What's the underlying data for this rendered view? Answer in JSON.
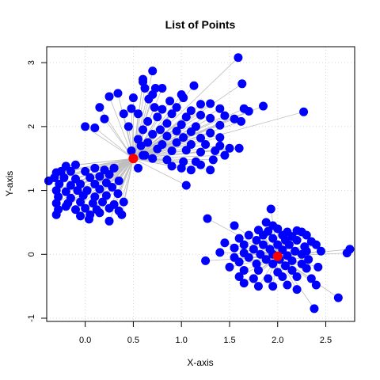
{
  "chart_data": {
    "type": "scatter",
    "title": "List of Points",
    "xlabel": "X-axis",
    "ylabel": "Y-axis",
    "xlim": [
      -0.4,
      2.8
    ],
    "ylim": [
      -1.05,
      3.25
    ],
    "xticks": [
      0.0,
      0.5,
      1.0,
      1.5,
      2.0,
      2.5
    ],
    "xtick_labels": [
      "0.0",
      "0.5",
      "1.0",
      "1.5",
      "2.0",
      "2.5"
    ],
    "yticks": [
      -1,
      0,
      1,
      2,
      3
    ],
    "ytick_labels": [
      "-1",
      "0",
      "1",
      "2",
      "3"
    ],
    "grid": true,
    "colors": {
      "points": "#0000ff",
      "centers": "#ff0000",
      "lines": "#bebebe",
      "grid": "#d3d3d3"
    },
    "centers": [
      {
        "x": 0.5,
        "y": 1.5
      },
      {
        "x": 2.0,
        "y": -0.03
      }
    ],
    "clusters": [
      {
        "center_index": 0,
        "points": [
          [
            1.59,
            3.08
          ],
          [
            0.7,
            2.87
          ],
          [
            0.6,
            2.74
          ],
          [
            0.6,
            2.7
          ],
          [
            0.62,
            2.6
          ],
          [
            0.73,
            2.6
          ],
          [
            0.8,
            2.6
          ],
          [
            1.13,
            2.64
          ],
          [
            1.63,
            2.67
          ],
          [
            0.34,
            2.52
          ],
          [
            0.25,
            2.47
          ],
          [
            0.7,
            2.5
          ],
          [
            1.0,
            2.5
          ],
          [
            1.02,
            2.45
          ],
          [
            0.5,
            2.45
          ],
          [
            0.66,
            2.43
          ],
          [
            0.88,
            2.4
          ],
          [
            1.2,
            2.35
          ],
          [
            1.3,
            2.36
          ],
          [
            1.4,
            2.28
          ],
          [
            1.85,
            2.32
          ],
          [
            0.15,
            2.3
          ],
          [
            0.48,
            2.28
          ],
          [
            0.72,
            2.3
          ],
          [
            0.8,
            2.27
          ],
          [
            0.95,
            2.3
          ],
          [
            1.1,
            2.25
          ],
          [
            1.65,
            2.28
          ],
          [
            1.7,
            2.24
          ],
          [
            2.27,
            2.23
          ],
          [
            0.4,
            2.2
          ],
          [
            0.55,
            2.2
          ],
          [
            0.9,
            2.2
          ],
          [
            1.2,
            2.18
          ],
          [
            1.45,
            2.17
          ],
          [
            0.2,
            2.12
          ],
          [
            0.75,
            2.15
          ],
          [
            1.05,
            2.15
          ],
          [
            1.3,
            2.13
          ],
          [
            1.55,
            2.12
          ],
          [
            1.62,
            2.08
          ],
          [
            0.65,
            2.08
          ],
          [
            0.85,
            2.05
          ],
          [
            1.0,
            2.03
          ],
          [
            1.15,
            2.0
          ],
          [
            1.4,
            2.02
          ],
          [
            0.0,
            2.0
          ],
          [
            0.1,
            1.98
          ],
          [
            0.45,
            2.0
          ],
          [
            0.6,
            1.95
          ],
          [
            0.78,
            1.95
          ],
          [
            0.95,
            1.93
          ],
          [
            1.1,
            1.92
          ],
          [
            1.3,
            1.9
          ],
          [
            0.7,
            1.88
          ],
          [
            0.85,
            1.85
          ],
          [
            1.02,
            1.83
          ],
          [
            1.2,
            1.82
          ],
          [
            1.4,
            1.83
          ],
          [
            0.55,
            1.8
          ],
          [
            0.65,
            1.75
          ],
          [
            0.8,
            1.72
          ],
          [
            0.95,
            1.75
          ],
          [
            1.1,
            1.72
          ],
          [
            1.25,
            1.72
          ],
          [
            1.4,
            1.7
          ],
          [
            1.5,
            1.66
          ],
          [
            1.6,
            1.66
          ],
          [
            0.75,
            1.65
          ],
          [
            0.9,
            1.62
          ],
          [
            1.05,
            1.63
          ],
          [
            1.2,
            1.6
          ],
          [
            1.35,
            1.62
          ],
          [
            1.45,
            1.55
          ],
          [
            0.6,
            1.55
          ],
          [
            0.7,
            1.5
          ],
          [
            0.85,
            1.48
          ],
          [
            1.02,
            1.45
          ],
          [
            1.15,
            1.45
          ],
          [
            1.33,
            1.48
          ],
          [
            0.9,
            1.38
          ],
          [
            1.0,
            1.35
          ],
          [
            1.1,
            1.32
          ],
          [
            1.3,
            1.32
          ],
          [
            0.55,
            1.35
          ],
          [
            1.05,
            1.08
          ],
          [
            0.62,
            1.55
          ],
          [
            0.48,
            1.62
          ],
          [
            0.58,
            1.7
          ],
          [
            1.2,
            1.4
          ],
          [
            -0.1,
            1.4
          ],
          [
            -0.2,
            1.38
          ],
          [
            -0.25,
            1.3
          ],
          [
            -0.3,
            1.28
          ],
          [
            -0.15,
            1.3
          ],
          [
            0.0,
            1.3
          ],
          [
            0.1,
            1.35
          ],
          [
            0.2,
            1.32
          ],
          [
            0.3,
            1.35
          ],
          [
            -0.32,
            1.2
          ],
          [
            -0.22,
            1.2
          ],
          [
            -0.1,
            1.18
          ],
          [
            0.05,
            1.2
          ],
          [
            0.15,
            1.22
          ],
          [
            0.25,
            1.25
          ],
          [
            -0.38,
            1.15
          ],
          [
            -0.27,
            1.1
          ],
          [
            -0.15,
            1.08
          ],
          [
            -0.05,
            1.1
          ],
          [
            0.1,
            1.1
          ],
          [
            0.22,
            1.12
          ],
          [
            0.35,
            1.15
          ],
          [
            -0.3,
            1.0
          ],
          [
            -0.2,
            0.98
          ],
          [
            -0.08,
            1.0
          ],
          [
            0.02,
            1.0
          ],
          [
            0.15,
            1.02
          ],
          [
            0.28,
            1.05
          ],
          [
            -0.28,
            0.9
          ],
          [
            -0.15,
            0.88
          ],
          [
            -0.02,
            0.92
          ],
          [
            0.1,
            0.9
          ],
          [
            0.22,
            0.92
          ],
          [
            0.34,
            0.95
          ],
          [
            -0.3,
            0.8
          ],
          [
            -0.18,
            0.8
          ],
          [
            -0.05,
            0.82
          ],
          [
            0.08,
            0.8
          ],
          [
            0.18,
            0.82
          ],
          [
            0.3,
            0.78
          ],
          [
            0.4,
            0.82
          ],
          [
            -0.28,
            0.7
          ],
          [
            -0.1,
            0.7
          ],
          [
            0.0,
            0.72
          ],
          [
            0.12,
            0.7
          ],
          [
            0.25,
            0.72
          ],
          [
            0.35,
            0.68
          ],
          [
            -0.3,
            0.62
          ],
          [
            -0.05,
            0.6
          ],
          [
            0.05,
            0.62
          ],
          [
            0.15,
            0.65
          ],
          [
            0.38,
            0.62
          ],
          [
            0.04,
            0.55
          ],
          [
            0.25,
            0.52
          ],
          [
            -0.2,
            0.75
          ]
        ]
      },
      {
        "center_index": 1,
        "points": [
          [
            1.93,
            0.71
          ],
          [
            1.27,
            0.56
          ],
          [
            1.55,
            0.45
          ],
          [
            1.88,
            0.5
          ],
          [
            1.95,
            0.45
          ],
          [
            2.0,
            0.4
          ],
          [
            1.8,
            0.38
          ],
          [
            1.9,
            0.36
          ],
          [
            2.1,
            0.35
          ],
          [
            2.2,
            0.37
          ],
          [
            2.25,
            0.35
          ],
          [
            1.7,
            0.3
          ],
          [
            1.85,
            0.3
          ],
          [
            2.05,
            0.3
          ],
          [
            2.15,
            0.28
          ],
          [
            2.3,
            0.3
          ],
          [
            1.6,
            0.25
          ],
          [
            1.78,
            0.22
          ],
          [
            1.95,
            0.25
          ],
          [
            2.08,
            0.22
          ],
          [
            2.2,
            0.22
          ],
          [
            2.35,
            0.2
          ],
          [
            1.45,
            0.18
          ],
          [
            1.65,
            0.15
          ],
          [
            1.85,
            0.15
          ],
          [
            2.0,
            0.15
          ],
          [
            2.12,
            0.15
          ],
          [
            2.28,
            0.12
          ],
          [
            2.4,
            0.15
          ],
          [
            1.55,
            0.1
          ],
          [
            1.75,
            0.08
          ],
          [
            1.92,
            0.08
          ],
          [
            2.05,
            0.07
          ],
          [
            2.18,
            0.05
          ],
          [
            2.3,
            0.05
          ],
          [
            1.4,
            0.03
          ],
          [
            1.65,
            0.02
          ],
          [
            1.82,
            0.0
          ],
          [
            1.95,
            0.0
          ],
          [
            2.1,
            -0.02
          ],
          [
            2.25,
            0.0
          ],
          [
            2.45,
            0.05
          ],
          [
            2.75,
            0.08
          ],
          [
            2.72,
            0.02
          ],
          [
            1.55,
            -0.05
          ],
          [
            1.7,
            -0.05
          ],
          [
            1.88,
            -0.08
          ],
          [
            2.02,
            -0.08
          ],
          [
            2.15,
            -0.1
          ],
          [
            2.32,
            -0.08
          ],
          [
            1.25,
            -0.1
          ],
          [
            1.6,
            -0.12
          ],
          [
            1.78,
            -0.15
          ],
          [
            1.95,
            -0.15
          ],
          [
            2.08,
            -0.18
          ],
          [
            2.25,
            -0.15
          ],
          [
            1.65,
            -0.25
          ],
          [
            1.8,
            -0.25
          ],
          [
            2.0,
            -0.28
          ],
          [
            2.15,
            -0.25
          ],
          [
            2.3,
            -0.22
          ],
          [
            2.42,
            -0.2
          ],
          [
            1.6,
            -0.35
          ],
          [
            1.75,
            -0.38
          ],
          [
            1.9,
            -0.38
          ],
          [
            2.05,
            -0.35
          ],
          [
            2.2,
            -0.35
          ],
          [
            2.35,
            -0.38
          ],
          [
            1.8,
            -0.5
          ],
          [
            1.95,
            -0.5
          ],
          [
            2.1,
            -0.48
          ],
          [
            2.2,
            -0.55
          ],
          [
            2.4,
            -0.48
          ],
          [
            2.63,
            -0.68
          ],
          [
            2.38,
            -0.85
          ],
          [
            1.65,
            -0.45
          ],
          [
            1.5,
            -0.2
          ]
        ]
      }
    ]
  }
}
